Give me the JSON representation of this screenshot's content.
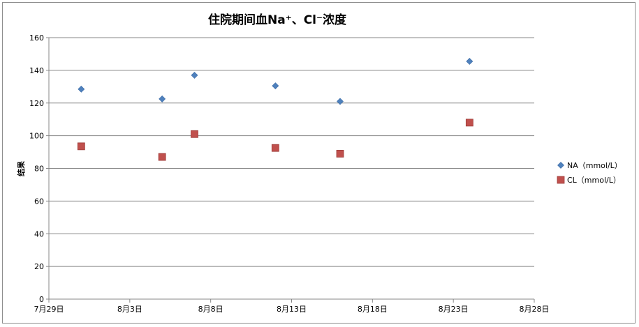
{
  "chart_data": {
    "type": "scatter",
    "title": "住院期间血Na⁺、Cl⁻浓度",
    "ylabel": "结果",
    "xlabel": "",
    "ylim": [
      0,
      160
    ],
    "yticks": [
      0,
      20,
      40,
      60,
      80,
      100,
      120,
      140,
      160
    ],
    "xlim": [
      "07-29",
      "08-28"
    ],
    "xtick_labels": [
      "7月29日",
      "8月3日",
      "8月8日",
      "8月13日",
      "8月18日",
      "8月23日",
      "8月28日"
    ],
    "grid": "horizontal",
    "legend_position": "right",
    "series": [
      {
        "name": "NA（mmol/L）",
        "marker": "diamond",
        "color": "#4f81bd",
        "x": [
          "07-31",
          "08-05",
          "08-07",
          "08-12",
          "08-16",
          "08-24"
        ],
        "y": [
          128.5,
          122.5,
          137,
          130.5,
          121,
          145.5
        ]
      },
      {
        "name": "CL（mmol/L）",
        "marker": "square",
        "color": "#c0504d",
        "x": [
          "07-31",
          "08-05",
          "08-07",
          "08-12",
          "08-16",
          "08-24"
        ],
        "y": [
          93.5,
          87,
          101,
          92.5,
          89,
          108
        ]
      }
    ]
  }
}
